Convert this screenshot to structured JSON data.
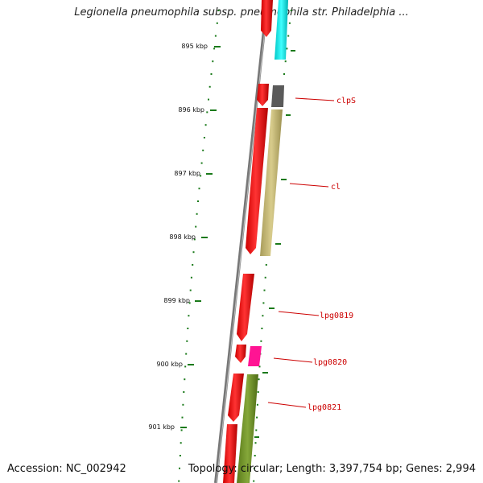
{
  "title": "Legionella pneumophila subsp. pneumophila str. Philadelphia ...",
  "footer": {
    "accession": "Accession: NC_002942",
    "summary": "Topology: circular; Length: 3,397,754 bp; Genes: 2,994"
  },
  "ticks": [
    "895 kbp",
    "896 kbp",
    "897 kbp",
    "898 kbp",
    "899 kbp",
    "900 kbp",
    "901 kbp"
  ],
  "genes": [
    "clpS",
    "cl",
    "lpg0819",
    "lpg0820",
    "lpg0821"
  ],
  "colors": {
    "forward_cds": "#ff0000",
    "tick": "#1a7a1a",
    "label": "#cc0000",
    "backbone": "#777777",
    "cyan_feature": "#00e5e5",
    "gray_feature": "#555555",
    "olive_feature": "#c8bb78",
    "pink_feature": "#ff1493",
    "green_feature": "#6b8e23"
  }
}
